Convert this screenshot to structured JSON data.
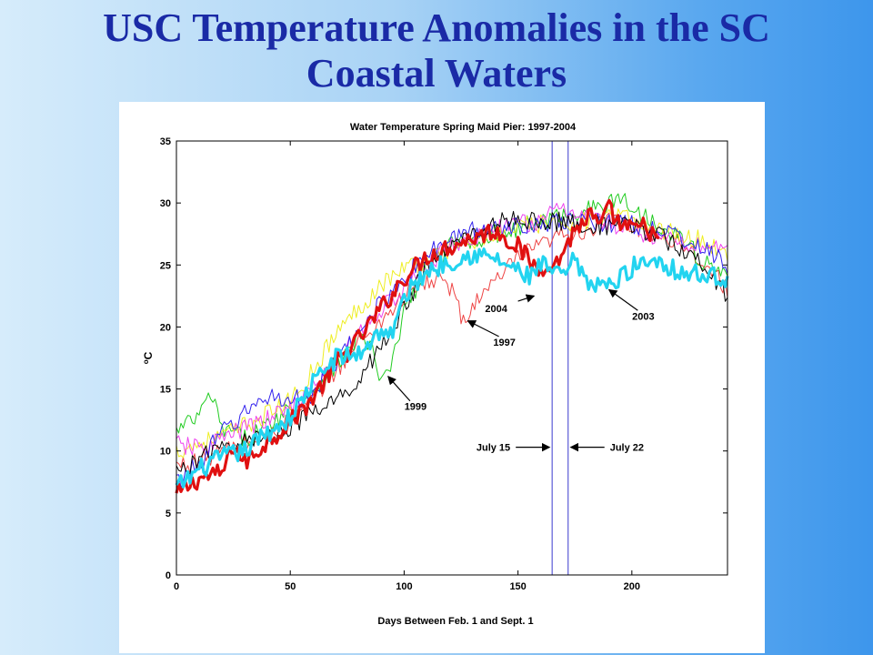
{
  "slide": {
    "title_line1": "USC Temperature Anomalies in the SC",
    "title_line2": "Coastal Waters"
  },
  "chart_data": {
    "type": "line",
    "title": "Water Temperature Spring Maid Pier: 1997-2004",
    "xlabel": "Days Between Feb. 1 and Sept. 1",
    "ylabel": "oC",
    "xlim": [
      0,
      242
    ],
    "ylim": [
      0,
      35
    ],
    "xticks": [
      0,
      50,
      100,
      150,
      200
    ],
    "yticks": [
      0,
      5,
      10,
      15,
      20,
      25,
      30,
      35
    ],
    "grid": false,
    "reference_lines": [
      {
        "x": 165,
        "label": "July 15",
        "color": "#5b5bd6"
      },
      {
        "x": 172,
        "label": "July 22",
        "color": "#5b5bd6"
      }
    ],
    "annotations": [
      {
        "text": "1999",
        "x": 105,
        "y": 13.3
      },
      {
        "text": "1997",
        "x": 144,
        "y": 18.5
      },
      {
        "text": "2004",
        "x": 146,
        "y": 21.2
      },
      {
        "text": "2003",
        "x": 205,
        "y": 20.6
      }
    ],
    "series": [
      {
        "name": "2004",
        "color": "#e01010",
        "width": 3.2,
        "x": [
          0,
          10,
          20,
          25,
          30,
          40,
          50,
          60,
          70,
          80,
          90,
          100,
          110,
          120,
          130,
          140,
          150,
          155,
          160,
          163,
          166,
          170,
          174,
          178,
          182,
          186,
          190,
          195,
          200,
          205,
          210,
          212
        ],
        "y": [
          6.4,
          7.8,
          8.2,
          10.5,
          9.0,
          10.8,
          12.3,
          14.3,
          17.0,
          19.0,
          21.5,
          24.0,
          25.7,
          26.5,
          27.2,
          27.8,
          26.5,
          25.3,
          24.5,
          25.5,
          24.8,
          26.2,
          27.5,
          28.4,
          29.0,
          28.0,
          29.5,
          28.2,
          27.8,
          28.1,
          27.5,
          26.5
        ]
      },
      {
        "name": "2003",
        "color": "#22d4f0",
        "width": 3.2,
        "x": [
          0,
          10,
          20,
          30,
          40,
          50,
          60,
          70,
          80,
          90,
          95,
          100,
          110,
          120,
          130,
          140,
          150,
          155,
          160,
          165,
          170,
          175,
          180,
          185,
          190,
          200,
          210,
          220,
          230,
          242
        ],
        "y": [
          7.0,
          8.5,
          9.5,
          10.0,
          11.5,
          12.7,
          15.5,
          17.5,
          17.8,
          19.8,
          19.4,
          22.4,
          24.5,
          25.3,
          25.9,
          25.5,
          24.5,
          24.0,
          25.0,
          24.5,
          24.0,
          25.5,
          23.4,
          23.7,
          23.2,
          24.8,
          25.6,
          24.5,
          24.2,
          24.0
        ]
      },
      {
        "name": "1997",
        "color": "#ee4444",
        "width": 1,
        "x": [
          0,
          10,
          20,
          30,
          40,
          50,
          60,
          70,
          80,
          90,
          100,
          110,
          115,
          120,
          125,
          128,
          132,
          140,
          150,
          160,
          170,
          180,
          190,
          200,
          210,
          220,
          230,
          242
        ],
        "y": [
          8.8,
          9.2,
          10.0,
          10.5,
          11.3,
          12.4,
          14.2,
          16.5,
          18.8,
          20.5,
          22.5,
          23.5,
          24.0,
          23.2,
          21.0,
          20.3,
          22.5,
          23.5,
          25.6,
          26.5,
          27.5,
          27.8,
          28.5,
          28.2,
          27.5,
          27.0,
          25.5,
          23.0
        ]
      },
      {
        "name": "1999",
        "color": "#22cc22",
        "width": 1,
        "x": [
          0,
          5,
          10,
          15,
          20,
          30,
          40,
          50,
          60,
          70,
          80,
          85,
          90,
          95,
          100,
          110,
          120,
          130,
          140,
          150,
          160,
          170,
          180,
          190,
          195,
          200,
          210,
          220,
          230,
          242
        ],
        "y": [
          11.5,
          12.2,
          12.8,
          14.6,
          11.8,
          11.0,
          12.0,
          13.5,
          15.0,
          16.8,
          19.2,
          18.5,
          15.5,
          17.0,
          21.5,
          24.5,
          26.5,
          27.0,
          27.5,
          28.0,
          28.5,
          29.0,
          29.5,
          29.8,
          30.6,
          29.5,
          28.5,
          27.5,
          25.5,
          24.0
        ]
      },
      {
        "name": "yellow",
        "color": "#eeee22",
        "width": 1,
        "x": [
          0,
          10,
          20,
          30,
          40,
          50,
          60,
          70,
          80,
          90,
          100,
          110,
          120,
          130,
          140,
          150,
          160,
          170,
          180,
          190,
          200,
          210,
          220,
          230,
          242
        ],
        "y": [
          10.0,
          10.6,
          11.2,
          12.0,
          13.0,
          14.0,
          16.5,
          19.5,
          21.5,
          23.5,
          24.8,
          25.3,
          26.4,
          26.8,
          27.5,
          28.0,
          28.3,
          28.5,
          28.6,
          28.8,
          28.7,
          28.0,
          27.5,
          27.0,
          26.0
        ]
      },
      {
        "name": "magenta",
        "color": "#ee44ee",
        "width": 1,
        "x": [
          0,
          10,
          20,
          30,
          40,
          50,
          60,
          70,
          80,
          90,
          100,
          110,
          120,
          130,
          140,
          150,
          160,
          170,
          180,
          190,
          200,
          210,
          220,
          230,
          242
        ],
        "y": [
          10.5,
          10.2,
          11.0,
          11.8,
          12.5,
          13.6,
          15.0,
          17.5,
          19.5,
          21.5,
          23.0,
          25.0,
          26.5,
          27.2,
          27.8,
          28.3,
          28.6,
          29.5,
          29.0,
          28.2,
          28.0,
          27.2,
          27.0,
          26.5,
          26.5
        ]
      },
      {
        "name": "blue",
        "color": "#3322ee",
        "width": 1,
        "x": [
          0,
          10,
          20,
          30,
          40,
          50,
          60,
          70,
          80,
          90,
          100,
          110,
          120,
          130,
          140,
          150,
          160,
          170,
          180,
          190,
          200,
          210,
          220,
          230,
          242
        ],
        "y": [
          7.5,
          9.0,
          11.5,
          13.0,
          14.5,
          14.0,
          14.5,
          17.0,
          19.5,
          22.0,
          24.0,
          25.8,
          27.0,
          27.8,
          28.0,
          28.2,
          28.5,
          28.3,
          28.6,
          28.4,
          28.3,
          28.0,
          27.3,
          26.5,
          25.0
        ]
      },
      {
        "name": "black",
        "color": "#000000",
        "width": 1,
        "x": [
          0,
          10,
          20,
          30,
          40,
          50,
          60,
          70,
          80,
          90,
          100,
          110,
          120,
          130,
          140,
          150,
          160,
          170,
          180,
          190,
          200,
          210,
          220,
          230,
          242
        ],
        "y": [
          8.2,
          9.4,
          10.2,
          10.7,
          11.2,
          12.0,
          13.0,
          14.0,
          15.8,
          18.5,
          21.5,
          24.8,
          26.4,
          27.6,
          28.3,
          28.8,
          28.4,
          28.5,
          28.3,
          28.0,
          28.2,
          27.5,
          26.5,
          25.5,
          22.3
        ]
      }
    ]
  }
}
